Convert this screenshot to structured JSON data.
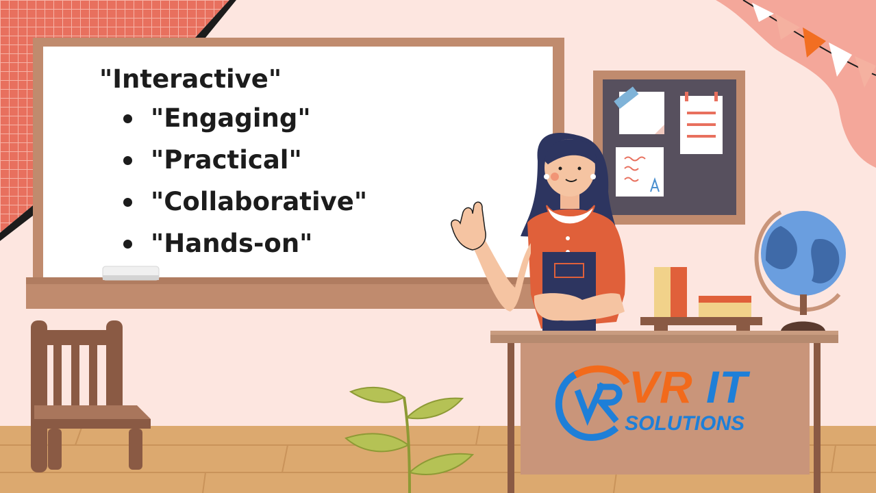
{
  "board": {
    "heading": "\"Interactive\"",
    "items": [
      {
        "label": "\"Engaging\""
      },
      {
        "label": "\"Practical\""
      },
      {
        "label": "\"Collaborative\""
      },
      {
        "label": "\"Hands-on\""
      }
    ]
  },
  "logo": {
    "line1_a": "VR",
    "line1_b": "IT",
    "line2": "SOLUTIONS"
  },
  "colors": {
    "wall": "#fde6e0",
    "floor": "#dba86e",
    "board_frame": "#c08b6e",
    "corkboard": "#57505e",
    "dress": "#e0603a",
    "logo_orange": "#f26a1b",
    "logo_blue": "#1e7fd8"
  }
}
